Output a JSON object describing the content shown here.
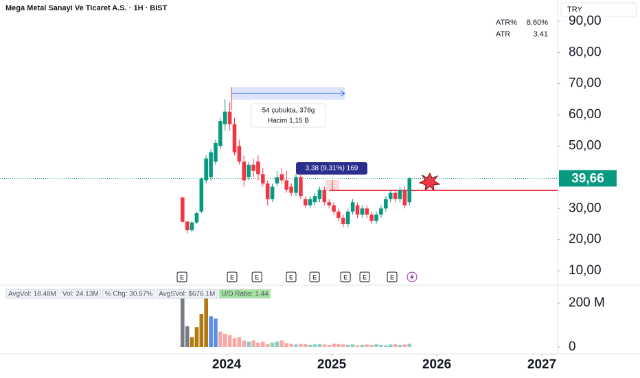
{
  "chart_data": {
    "type": "candlestick",
    "title": "Mega Metal Sanayi Ve Ticaret A.S. · 1H · BIST",
    "currency": "TRY",
    "up_color": "#089981",
    "down_color": "#f23645",
    "x": [
      2023.58,
      2023.625,
      2023.67,
      2023.715,
      2023.76,
      2023.805,
      2023.85,
      2023.895,
      2023.94,
      2023.985,
      2024.03,
      2024.075,
      2024.12,
      2024.165,
      2024.21,
      2024.255,
      2024.3,
      2024.345,
      2024.39,
      2024.435,
      2024.48,
      2024.525,
      2024.57,
      2024.615,
      2024.66,
      2024.705,
      2024.75,
      2024.795,
      2024.84,
      2024.885,
      2024.93,
      2024.975,
      2025.02,
      2025.065,
      2025.11,
      2025.155,
      2025.2,
      2025.245,
      2025.29,
      2025.335,
      2025.38,
      2025.425,
      2025.47,
      2025.515,
      2025.56,
      2025.605,
      2025.65,
      2025.695,
      2025.74
    ],
    "open": [
      33.5,
      25.8,
      23,
      25.5,
      29,
      39,
      40,
      45,
      50,
      57,
      61,
      57,
      50,
      45,
      40,
      44,
      45,
      41,
      38,
      33,
      38,
      41,
      39,
      37,
      35,
      40,
      33,
      31,
      32,
      33,
      36,
      32,
      31,
      29,
      27,
      25,
      29,
      31,
      28,
      30,
      28,
      26,
      28,
      30,
      33,
      35,
      33,
      36,
      32
    ],
    "high": [
      33.8,
      26,
      26,
      29,
      40,
      47,
      49,
      52,
      59,
      65,
      64,
      59,
      52,
      47,
      45,
      46,
      47,
      43,
      39,
      38,
      42,
      43,
      42,
      38,
      41,
      41,
      34,
      34,
      35,
      37,
      37,
      33,
      32,
      30,
      28,
      30,
      33,
      32,
      31,
      31,
      29,
      29,
      31,
      34,
      36,
      36,
      37,
      37,
      40
    ],
    "low": [
      25.5,
      22,
      22.5,
      25,
      28.5,
      38,
      39,
      44,
      49,
      55,
      55,
      47,
      44,
      37,
      39,
      40,
      39,
      37,
      31,
      32,
      37,
      38,
      35,
      34,
      34,
      33,
      30,
      30,
      31,
      32,
      31,
      30,
      28,
      26,
      24,
      24,
      28,
      27,
      27,
      27,
      25,
      25,
      27,
      29,
      32,
      32,
      32,
      30,
      31
    ],
    "close": [
      25.7,
      23,
      25.5,
      28.5,
      39.5,
      46,
      48,
      51,
      58,
      61,
      57,
      48,
      45,
      39,
      44,
      42,
      41,
      38,
      33,
      37,
      40,
      39,
      36,
      35,
      40,
      34,
      31,
      33,
      34,
      36,
      32,
      31,
      29,
      27,
      25,
      29,
      32,
      28,
      30,
      28,
      26,
      28,
      30,
      33,
      35,
      33,
      36,
      31,
      39.66
    ],
    "xlim": [
      2021.843,
      2027.15
    ],
    "xticks": [
      2024,
      2025,
      2026,
      2027
    ],
    "ylim": [
      5.4,
      96.8
    ],
    "yticks": [
      {
        "value": 10,
        "label": "10,00"
      },
      {
        "value": 20,
        "label": "20,00"
      },
      {
        "value": 30,
        "label": "30,00"
      },
      {
        "value": 40,
        "label": "40,00"
      },
      {
        "value": 50,
        "label": "50,00"
      },
      {
        "value": 60,
        "label": "60,00"
      },
      {
        "value": 70,
        "label": "70,00"
      },
      {
        "value": 80,
        "label": "80,00"
      },
      {
        "value": 90,
        "label": "90,00"
      }
    ],
    "last_price": {
      "value": 39.66,
      "label": "39,66"
    },
    "level": 35.8,
    "indicators": [
      {
        "name": "ATR%",
        "value": "8.60%"
      },
      {
        "name": "ATR",
        "value": "3.41"
      }
    ],
    "events": [
      {
        "x": 2023.575,
        "label": "E"
      },
      {
        "x": 2024.052,
        "label": "E"
      },
      {
        "x": 2024.288,
        "label": "E"
      },
      {
        "x": 2024.614,
        "label": "E"
      },
      {
        "x": 2024.837,
        "label": "E"
      },
      {
        "x": 2025.131,
        "label": "E"
      },
      {
        "x": 2025.314,
        "label": "E"
      },
      {
        "x": 2025.575,
        "label": "E"
      }
    ],
    "annotations": {
      "range_bars": "54 çubukta, 378g",
      "range_volume": "Hacim 1,15 B",
      "price_change": "3,38 (9,31%) 169"
    },
    "volume": {
      "stats": [
        "AvgVol: 18.48M",
        "Vol: 24.13M",
        "% Chg: 30.57%",
        "AvgSVol: $676.1M",
        "U/D Ratio: 1.44"
      ],
      "values": [
        250,
        95,
        45,
        90,
        150,
        260,
        140,
        130,
        70,
        60,
        55,
        40,
        45,
        30,
        25,
        30,
        20,
        25,
        15,
        20,
        25,
        30,
        18,
        15,
        12,
        15,
        14,
        10,
        12,
        14,
        12,
        10,
        16,
        14,
        12,
        10,
        12,
        8,
        10,
        12,
        10,
        14,
        10,
        8,
        12,
        14,
        10,
        12,
        15
      ],
      "colors": [
        "#787b86",
        "#787b86",
        "#b07a10",
        "#b07a10",
        "#b07a10",
        "#b07a10",
        "#5b8ee6",
        "#5b8ee6",
        "#f7a9a7",
        "#f7a9a7",
        "#f7a9a7",
        "#f7a9a7",
        "#f7a9a7",
        "#f7a9a7",
        "#8ccfbe",
        "#f7a9a7",
        "#f7a9a7",
        "#f7a9a7",
        "#f7a9a7",
        "#8ccfbe",
        "#8ccfbe",
        "#f7a9a7",
        "#f7a9a7",
        "#f7a9a7",
        "#8ccfbe",
        "#f7a9a7",
        "#f7a9a7",
        "#8ccfbe",
        "#8ccfbe",
        "#8ccfbe",
        "#f7a9a7",
        "#f7a9a7",
        "#f7a9a7",
        "#f7a9a7",
        "#f7a9a7",
        "#8ccfbe",
        "#8ccfbe",
        "#f7a9a7",
        "#8ccfbe",
        "#f7a9a7",
        "#f7a9a7",
        "#8ccfbe",
        "#8ccfbe",
        "#8ccfbe",
        "#8ccfbe",
        "#f7a9a7",
        "#8ccfbe",
        "#f7a9a7",
        "#8ccfbe"
      ],
      "ylim": [
        0,
        272
      ],
      "yticks": [
        0,
        {
          "value": 200,
          "label": "200 M"
        }
      ]
    }
  }
}
